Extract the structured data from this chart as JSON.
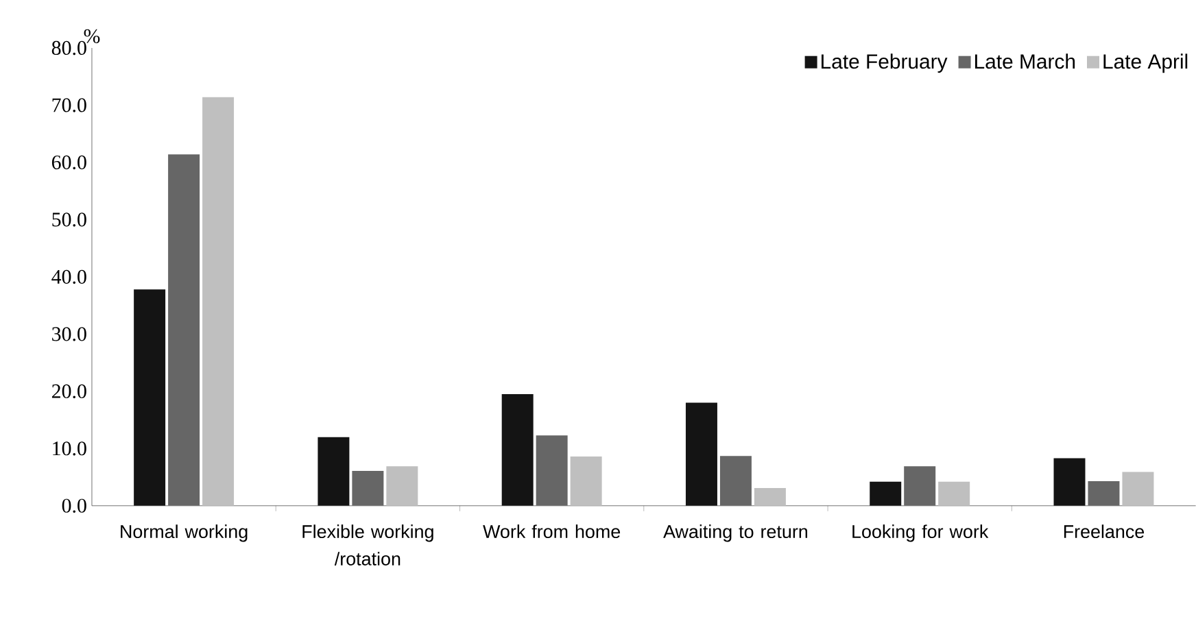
{
  "chart_data": {
    "type": "bar",
    "ylabel": "%",
    "categories": [
      "Normal working",
      "Flexible working /rotation",
      "Work from home",
      "Awaiting to return",
      "Looking for work",
      "Freelance"
    ],
    "series": [
      {
        "name": "Late February",
        "color": "#141414",
        "values": [
          37.8,
          12.0,
          19.5,
          18.0,
          4.2,
          8.3
        ]
      },
      {
        "name": "Late March",
        "color": "#666666",
        "values": [
          61.4,
          6.1,
          12.3,
          8.7,
          6.9,
          4.3
        ]
      },
      {
        "name": "Late April",
        "color": "#bfbfbf",
        "values": [
          71.4,
          6.9,
          8.6,
          3.1,
          4.2,
          5.9
        ]
      }
    ],
    "ylim": [
      0,
      80
    ],
    "yticks": [
      {
        "value": 0,
        "label": "0.0"
      },
      {
        "value": 10,
        "label": "10.0"
      },
      {
        "value": 20,
        "label": "20.0"
      },
      {
        "value": 30,
        "label": "30.0"
      },
      {
        "value": 40,
        "label": "40.0"
      },
      {
        "value": 50,
        "label": "50.0"
      },
      {
        "value": 60,
        "label": "60.0"
      },
      {
        "value": 70,
        "label": "70.0"
      },
      {
        "value": 80,
        "label": "80.0"
      }
    ],
    "legend": "top right"
  }
}
